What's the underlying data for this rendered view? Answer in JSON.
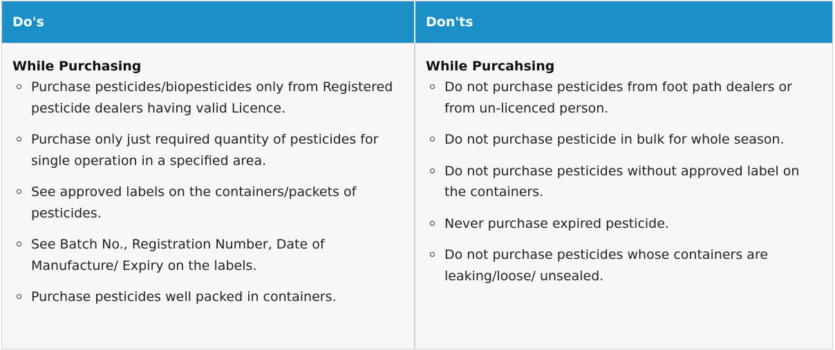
{
  "table": {
    "headers": [
      "Do's",
      "Don'ts"
    ],
    "dos": {
      "heading": "While Purchasing",
      "items": [
        "Purchase pesticides/biopesticides only from Registered pesticide dealers having valid Licence.",
        "Purchase only just required quantity of pesticides for single operation in a specified area.",
        "See approved labels on the containers/packets of pesticides.",
        "See Batch No., Registration Number, Date of Manufacture/ Expiry on the labels.",
        "Purchase pesticides well packed in containers."
      ]
    },
    "donts": {
      "heading": "While Purcahsing",
      "items": [
        "Do not purchase pesticides from foot path dealers or from un-licenced person.",
        "Do not purchase pesticide in bulk for whole season.",
        "Do not purchase pesticides without approved label on the containers.",
        "Never purchase expired pesticide.",
        "Do not purchase pesticides whose containers are leaking/loose/ unsealed."
      ]
    }
  },
  "colors": {
    "header_bg": "#1b90c8",
    "header_text": "#ffffff",
    "body_bg": "#f7f7f7"
  }
}
